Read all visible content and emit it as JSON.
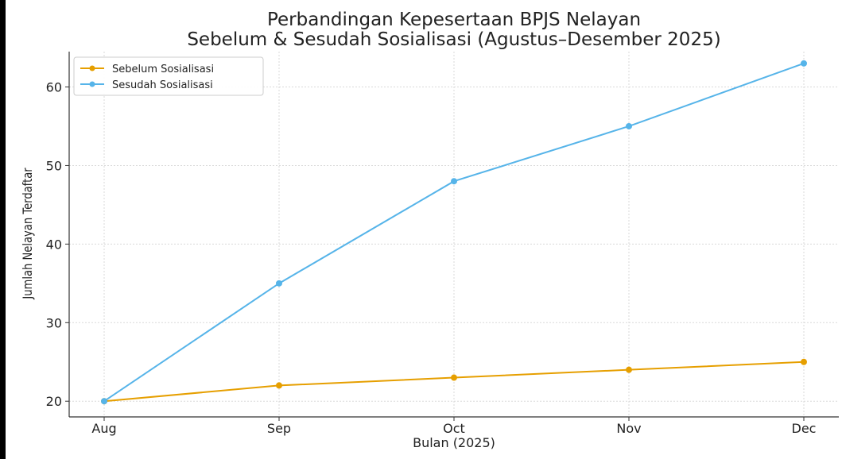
{
  "chart_data": {
    "type": "line",
    "title": [
      "Perbandingan Kepesertaan BPJS Nelayan",
      "Sebelum & Sesudah Sosialisasi (Agustus–Desember 2025)"
    ],
    "xlabel": "Bulan (2025)",
    "ylabel": "Jumlah Nelayan Terdaftar",
    "categories": [
      "Aug",
      "Sep",
      "Oct",
      "Nov",
      "Dec"
    ],
    "yticks": [
      20,
      30,
      40,
      50,
      60
    ],
    "ylim": [
      18,
      64.5
    ],
    "grid": true,
    "legend_position": "top-left",
    "series": [
      {
        "name": "Sebelum Sosialisasi",
        "color": "#E69F00",
        "values": [
          20,
          22,
          23,
          24,
          25
        ]
      },
      {
        "name": "Sesudah Sosialisasi",
        "color": "#56B4E9",
        "values": [
          20,
          35,
          48,
          55,
          63
        ]
      }
    ]
  }
}
